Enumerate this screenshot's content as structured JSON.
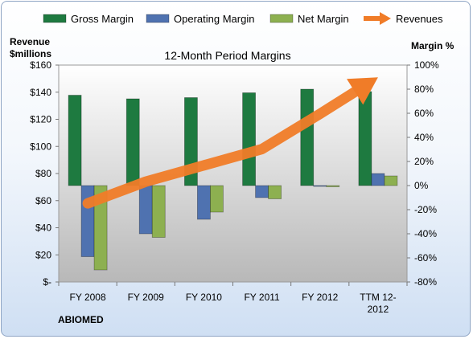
{
  "chart_data": {
    "type": "bar",
    "title": "12-Month Period Margins",
    "company": "ABIOMED",
    "y_left_label": [
      "Revenue",
      "$millions"
    ],
    "y_right_label": "Margin %",
    "categories": [
      "FY 2008",
      "FY 2009",
      "FY 2010",
      "FY 2011",
      "FY 2012",
      "TTM 12-2012"
    ],
    "category_labels": [
      [
        "FY 2008"
      ],
      [
        "FY 2009"
      ],
      [
        "FY 2010"
      ],
      [
        "FY 2011"
      ],
      [
        "FY 2012"
      ],
      [
        "TTM 12-",
        "2012"
      ]
    ],
    "y_left": {
      "min": 0,
      "max": 160,
      "step": 20,
      "tick_labels": [
        "$-",
        "$20",
        "$40",
        "$60",
        "$80",
        "$100",
        "$120",
        "$140",
        "$160"
      ]
    },
    "y_right": {
      "min": -80,
      "max": 100,
      "step": 20,
      "unit": "%"
    },
    "series": [
      {
        "name": "Gross Margin",
        "axis": "right",
        "kind": "bar",
        "color": "#1e7a40",
        "values": [
          75,
          72,
          73,
          77,
          80,
          78
        ]
      },
      {
        "name": "Operating Margin",
        "axis": "right",
        "kind": "bar",
        "color": "#4f72b0",
        "values": [
          -59,
          -40,
          -28,
          -10,
          -0.5,
          10
        ]
      },
      {
        "name": "Net Margin",
        "axis": "right",
        "kind": "bar",
        "color": "#8db050",
        "values": [
          -70,
          -43,
          -22,
          -11,
          -1,
          8
        ]
      },
      {
        "name": "Revenues",
        "axis": "left",
        "kind": "line",
        "color": "#f07c28",
        "values": [
          58,
          74,
          86,
          98,
          124,
          151
        ]
      }
    ],
    "legend_position": "top",
    "grid": false
  }
}
